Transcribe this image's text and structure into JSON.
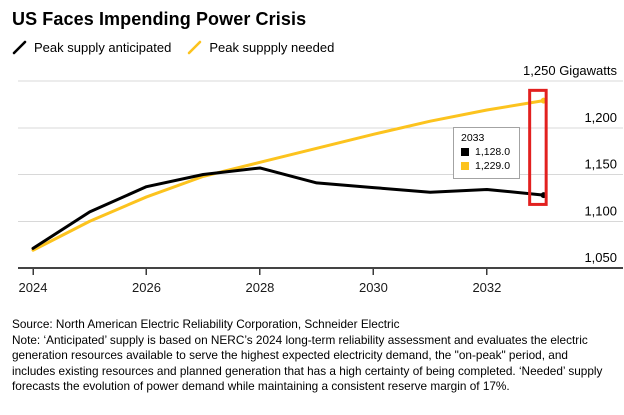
{
  "header": {
    "title": "US Faces Impending Power Crisis"
  },
  "legend": {
    "items": [
      {
        "label": "Peak supply anticipated",
        "color": "#000000"
      },
      {
        "label": "Peak suppply needed",
        "color": "#FCC31E"
      }
    ]
  },
  "tooltip": {
    "year": "2033",
    "rows": [
      {
        "value": "1,128.0",
        "color": "#000000"
      },
      {
        "value": "1,229.0",
        "color": "#FCC31E"
      }
    ]
  },
  "chart_data": {
    "type": "line",
    "title": "US Faces Impending Power Crisis",
    "ylabel_unit": "Gigawatts",
    "x": [
      2024,
      2025,
      2026,
      2027,
      2028,
      2029,
      2030,
      2031,
      2032,
      2033
    ],
    "series": [
      {
        "name": "Peak supply anticipated",
        "color": "#000000",
        "values": [
          1071,
          1110,
          1137,
          1150,
          1157,
          1141,
          1136,
          1131,
          1134,
          1128
        ]
      },
      {
        "name": "Peak suppply needed",
        "color": "#FCC31E",
        "values": [
          1069,
          1100,
          1126,
          1148,
          1163,
          1178,
          1193,
          1207,
          1219,
          1229
        ]
      }
    ],
    "ylim": [
      1050,
      1250
    ],
    "yticks": [
      1050,
      1100,
      1150,
      1200,
      1250
    ],
    "ytick_labels": [
      "1,050",
      "1,100",
      "1,150",
      "1,200",
      "1,250"
    ],
    "xticks": [
      2024,
      2026,
      2028,
      2030,
      2032
    ],
    "xtick_labels": [
      "2024",
      "2026",
      "2028",
      "2030",
      "2032"
    ],
    "grid": "horizontal",
    "legend_position": "top-left",
    "highlight": {
      "year": 2033,
      "value_range": [
        1118,
        1240
      ]
    },
    "final_values": {
      "anticipated": 1128.0,
      "needed": 1229.0
    }
  },
  "colors": {
    "accent_yellow": "#FCC31E",
    "highlight_red": "#E2201F",
    "gridline": "#D8D8D8",
    "axis_line": "#444444",
    "tick_mark": "#3a3a3a",
    "tooltip_border": "#a3a3a3"
  },
  "footer": {
    "source": "Source: North American Electric Reliability Corporation, Schneider Electric",
    "note": "Note: ‘Anticipated’ supply is based on NERC’s 2024 long-term reliability assessment and evaluates the electric generation resources available to serve the highest expected electricity demand, the \"on-peak\" period, and includes existing resources and planned generation that has a high certainty of being completed. ‘Needed’ supply forecasts the evolution of power demand while maintaining a consistent reserve margin of 17%."
  }
}
